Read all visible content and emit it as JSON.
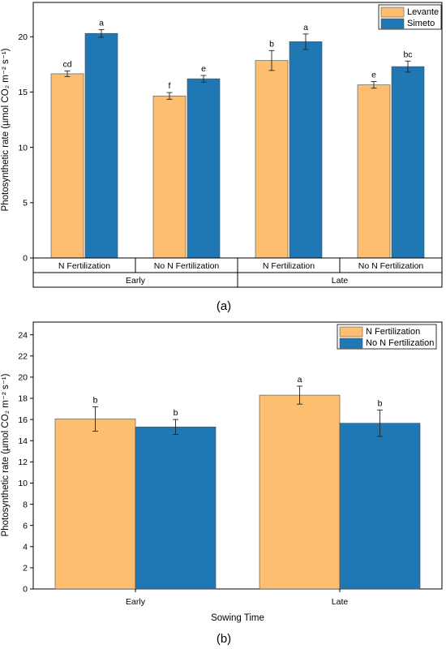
{
  "colors": {
    "orange": "#FDBF6F",
    "blue": "#1F78B4"
  },
  "chart_data": [
    {
      "type": "bar",
      "panel_label": "a",
      "ylabel": "Photosynthetic rate (µmol CO₂  m⁻² s⁻¹)",
      "ylim": [
        0,
        23.1
      ],
      "yticks": [
        0,
        5,
        10,
        15,
        20
      ],
      "legend_position": "top-right",
      "groups": [
        {
          "sowing": "Early",
          "categories": [
            "N Fertilization",
            "No N Fertilization"
          ]
        },
        {
          "sowing": "Late",
          "categories": [
            "N Fertilization",
            "No N Fertilization"
          ]
        }
      ],
      "series": [
        {
          "name": "Levante",
          "values": [
            16.65,
            14.65,
            17.85,
            15.65
          ],
          "errors": [
            0.25,
            0.3,
            0.9,
            0.3
          ],
          "letters": [
            "cd",
            "f",
            "b",
            "e"
          ]
        },
        {
          "name": "Simeto",
          "values": [
            20.3,
            16.2,
            19.55,
            17.3
          ],
          "errors": [
            0.35,
            0.3,
            0.7,
            0.5
          ],
          "letters": [
            "a",
            "e",
            "a",
            "bc"
          ]
        }
      ]
    },
    {
      "type": "bar",
      "panel_label": "b",
      "xlabel": "Sowing Time",
      "ylabel": "Photosynthetic rate (µmol CO₂  m⁻² s⁻¹)",
      "ylim": [
        0,
        25.2
      ],
      "yticks": [
        0,
        2,
        4,
        6,
        8,
        10,
        12,
        14,
        16,
        18,
        20,
        22,
        24
      ],
      "legend_position": "top-right",
      "categories": [
        "Early",
        "Late"
      ],
      "series": [
        {
          "name": "N Fertilization",
          "values": [
            16.05,
            18.3
          ],
          "errors": [
            1.15,
            0.85
          ],
          "letters": [
            "b",
            "a"
          ]
        },
        {
          "name": "No N Fertilization",
          "values": [
            15.3,
            15.65
          ],
          "errors": [
            0.7,
            1.25
          ],
          "letters": [
            "b",
            "b"
          ]
        }
      ]
    }
  ]
}
